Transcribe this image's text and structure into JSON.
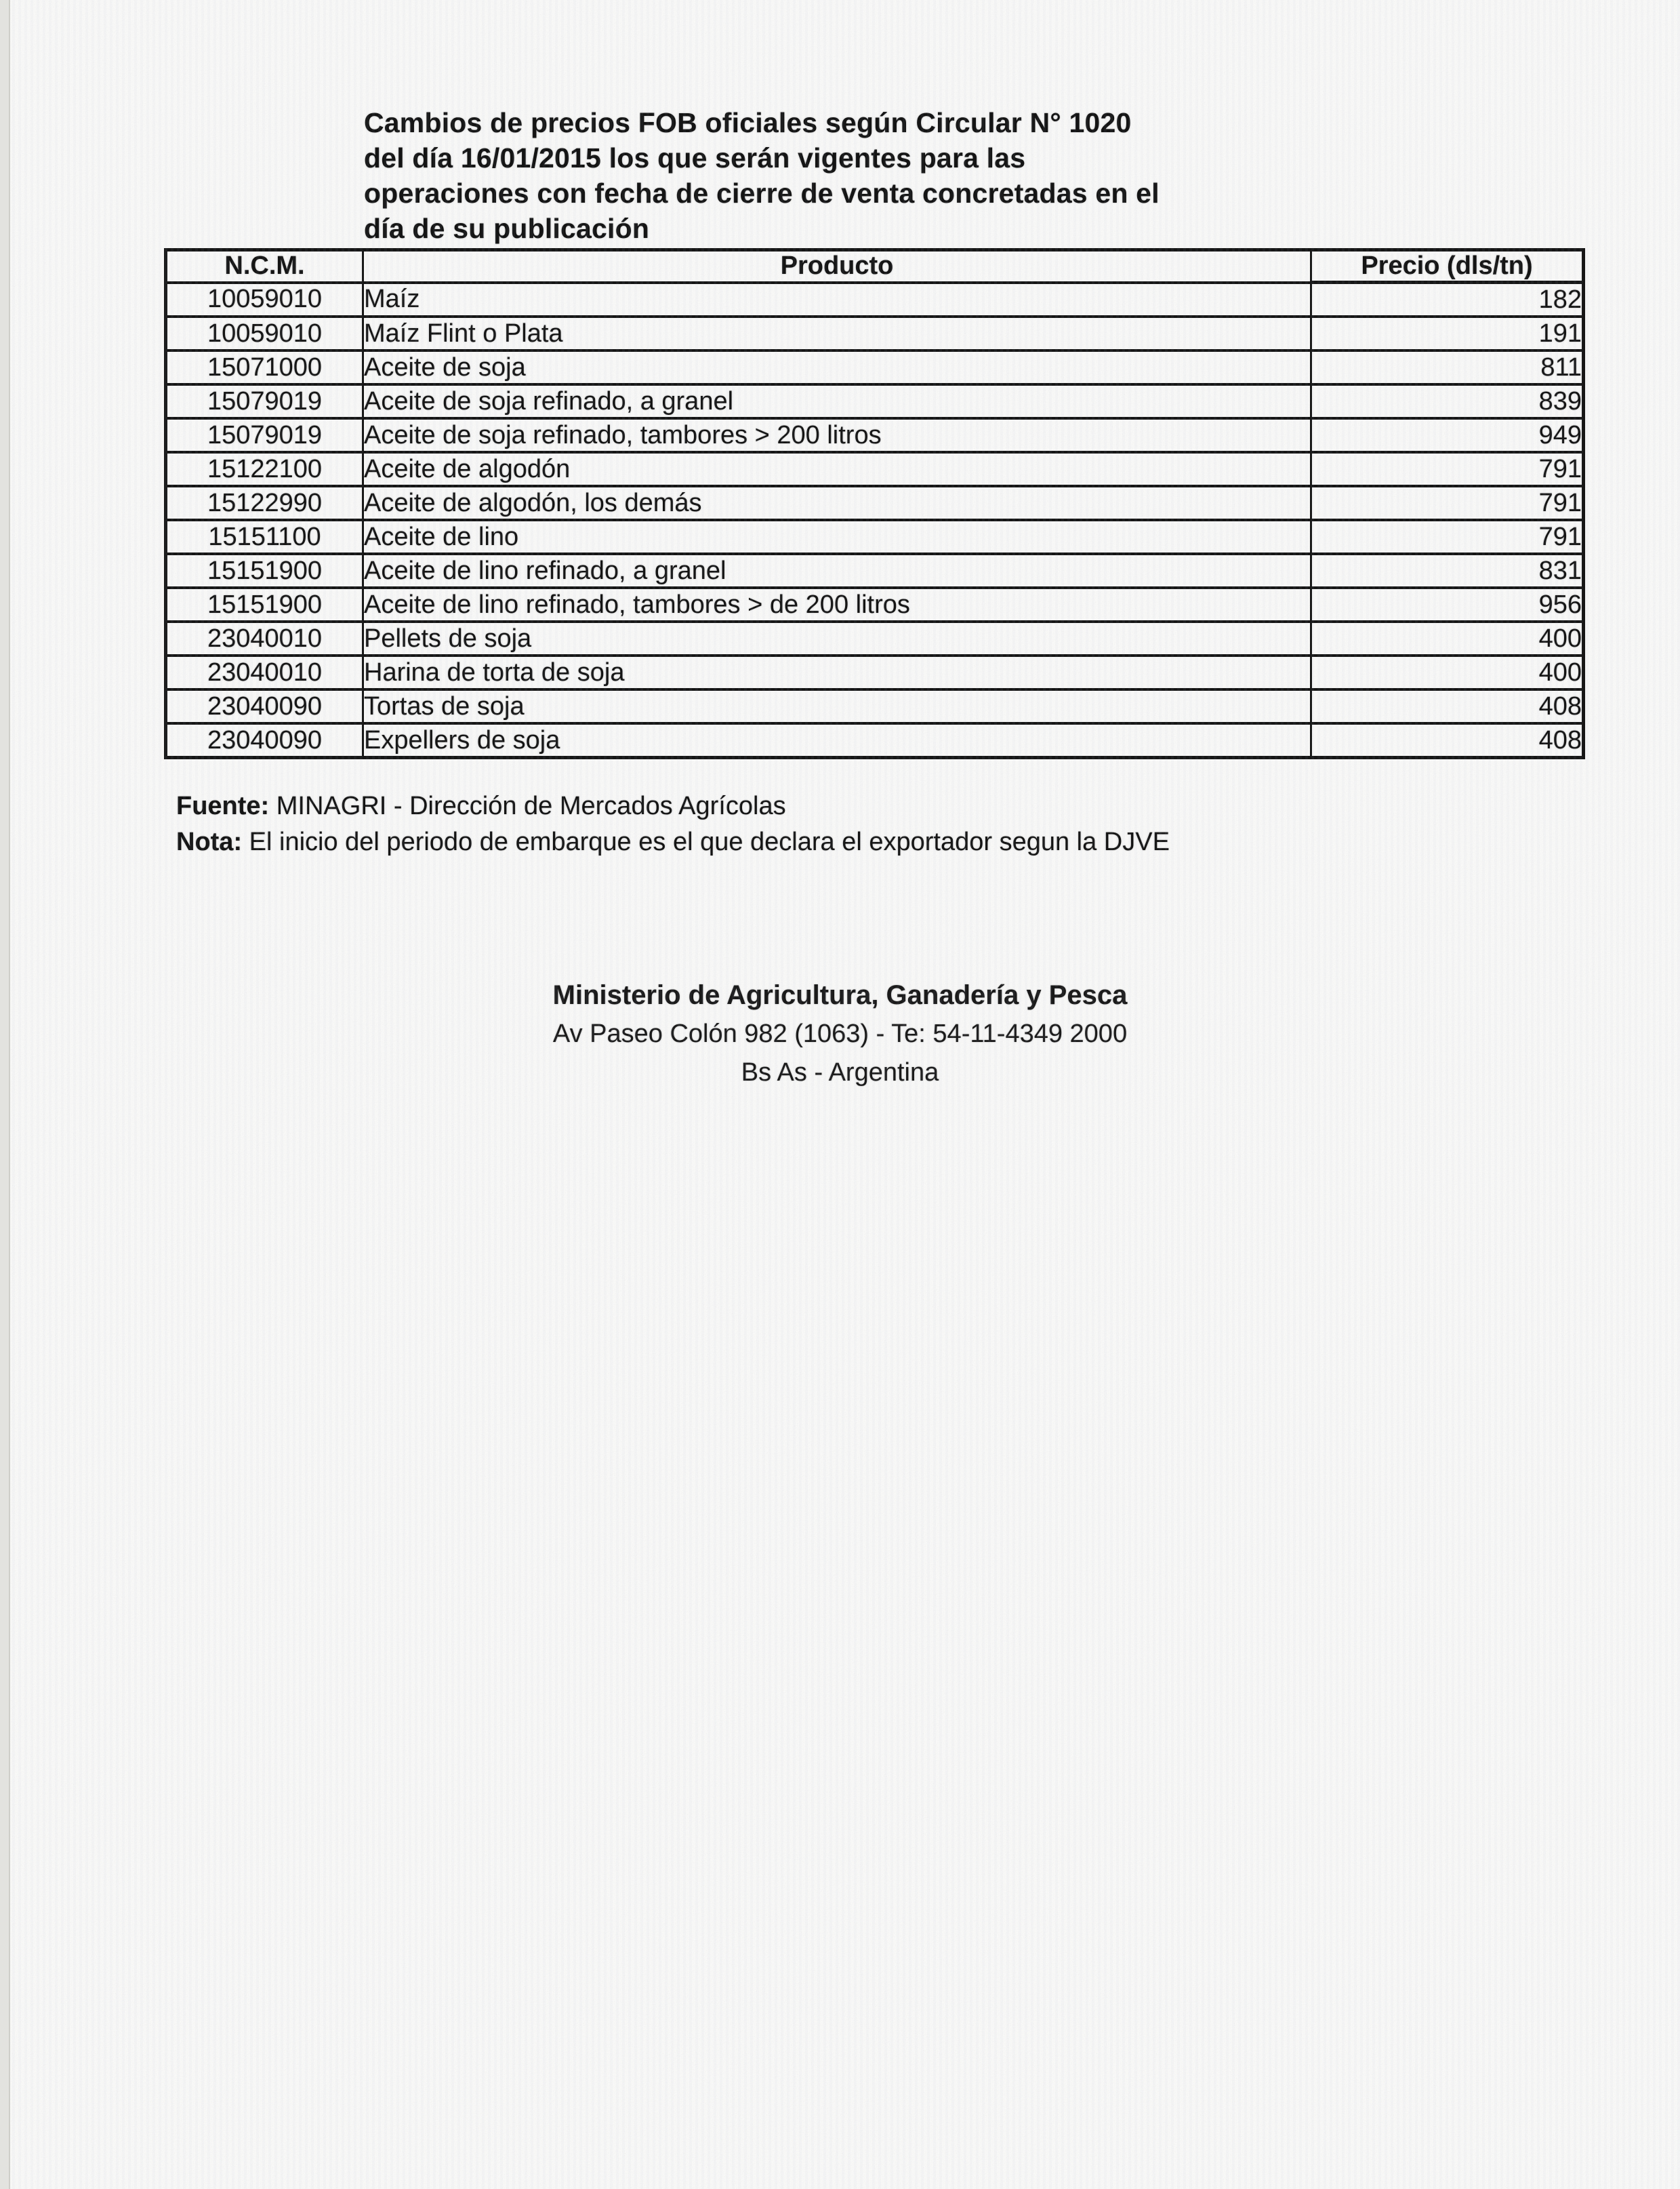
{
  "header": {
    "title_lines": [
      "Cambios de precios FOB oficiales según Circular N° 1020",
      "del día 16/01/2015 los que serán vigentes para las",
      "operaciones con fecha de cierre de venta concretadas en el",
      "día de su publicación"
    ]
  },
  "table": {
    "columns": [
      "N.C.M.",
      "Producto",
      "Precio (dls/tn)"
    ],
    "rows": [
      {
        "ncm": "10059010",
        "producto": "Maíz",
        "precio": "182"
      },
      {
        "ncm": "10059010",
        "producto": "Maíz Flint o Plata",
        "precio": "191"
      },
      {
        "ncm": "15071000",
        "producto": "Aceite de soja",
        "precio": "811"
      },
      {
        "ncm": "15079019",
        "producto": "Aceite de soja refinado, a granel",
        "precio": "839"
      },
      {
        "ncm": "15079019",
        "producto": "Aceite de soja refinado, tambores > 200 litros",
        "precio": "949"
      },
      {
        "ncm": "15122100",
        "producto": "Aceite de algodón",
        "precio": "791"
      },
      {
        "ncm": "15122990",
        "producto": "Aceite de algodón, los demás",
        "precio": "791"
      },
      {
        "ncm": "15151100",
        "producto": "Aceite de lino",
        "precio": "791"
      },
      {
        "ncm": "15151900",
        "producto": "Aceite de lino refinado, a granel",
        "precio": "831"
      },
      {
        "ncm": "15151900",
        "producto": "Aceite de lino refinado, tambores > de 200 litros",
        "precio": "956"
      },
      {
        "ncm": "23040010",
        "producto": "Pellets de soja",
        "precio": "400"
      },
      {
        "ncm": "23040010",
        "producto": "Harina de torta de soja",
        "precio": "400"
      },
      {
        "ncm": "23040090",
        "producto": "Tortas de soja",
        "precio": "408"
      },
      {
        "ncm": "23040090",
        "producto": "Expellers de soja",
        "precio": "408"
      }
    ]
  },
  "notes": {
    "fuente_label": "Fuente:",
    "fuente_text": " MINAGRI - Dirección de Mercados Agrícolas",
    "nota_label": "Nota:",
    "nota_text": " El inicio del periodo de embarque es el que declara el exportador segun la DJVE"
  },
  "ministry": {
    "name": "Ministerio de Agricultura, Ganadería y Pesca",
    "address": "Av Paseo Colón 982 (1063) - Te: 54-11-4349 2000",
    "location": "Bs As - Argentina"
  }
}
